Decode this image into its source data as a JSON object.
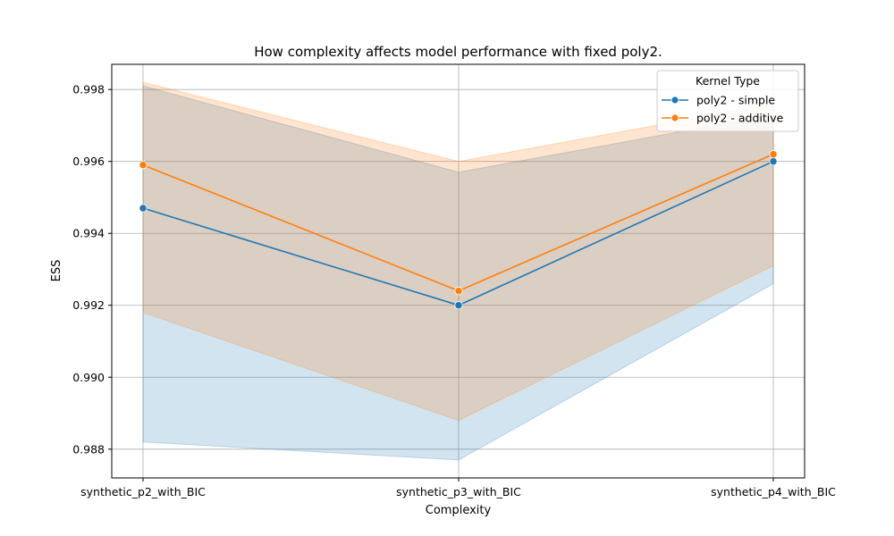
{
  "chart_data": {
    "type": "line",
    "title": "How complexity affects model performance with fixed poly2.",
    "xlabel": "Complexity",
    "ylabel": "ESS",
    "categories": [
      "synthetic_p2_with_BIC",
      "synthetic_p3_with_BIC",
      "synthetic_p4_with_BIC"
    ],
    "ylim": [
      0.9872,
      0.9987
    ],
    "yticks": [
      0.988,
      0.99,
      0.992,
      0.994,
      0.996,
      0.998
    ],
    "ytick_labels": [
      "0.988",
      "0.990",
      "0.992",
      "0.994",
      "0.996",
      "0.998"
    ],
    "grid": true,
    "legend": {
      "title": "Kernel Type",
      "placement": "top-right"
    },
    "series": [
      {
        "name": "poly2 - simple",
        "color": "#1f77b4",
        "values": [
          0.9947,
          0.992,
          0.996
        ],
        "ci_low": [
          0.9882,
          0.9877,
          0.9926
        ],
        "ci_high": [
          0.9981,
          0.9957,
          0.9973
        ]
      },
      {
        "name": "poly2 - additive",
        "color": "#ff7f0e",
        "values": [
          0.9959,
          0.9924,
          0.9962
        ],
        "ci_low": [
          0.9918,
          0.9888,
          0.9931
        ],
        "ci_high": [
          0.9982,
          0.996,
          0.9976
        ]
      }
    ]
  }
}
